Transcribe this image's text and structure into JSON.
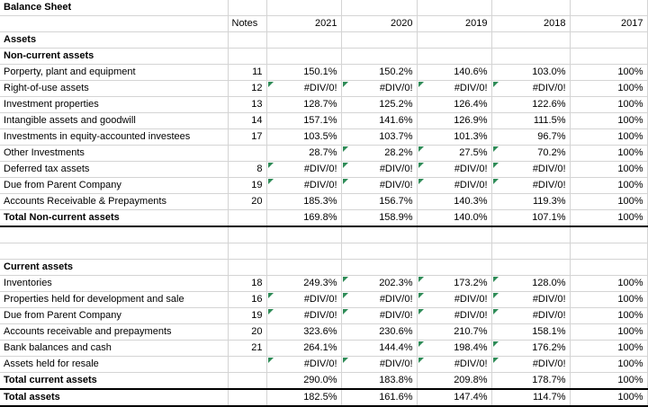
{
  "title": "Balance Sheet",
  "columns": [
    "Notes",
    "2021",
    "2020",
    "2019",
    "2018",
    "2017"
  ],
  "sections": [
    {
      "heading": "Assets",
      "subheading": "Non-current assets",
      "rows": [
        {
          "label": "Porperty, plant and equipment",
          "note": "11",
          "values": [
            "150.1%",
            "150.2%",
            "140.6%",
            "103.0%",
            "100%"
          ]
        },
        {
          "label": "Right-of-use assets",
          "note": "12",
          "values": [
            "#DIV/0!",
            "#DIV/0!",
            "#DIV/0!",
            "#DIV/0!",
            "100%"
          ],
          "flags": [
            true,
            true,
            true,
            true,
            false
          ]
        },
        {
          "label": "Investment properties",
          "note": "13",
          "values": [
            "128.7%",
            "125.2%",
            "126.4%",
            "122.6%",
            "100%"
          ]
        },
        {
          "label": "Intangible assets and goodwill",
          "note": "14",
          "values": [
            "157.1%",
            "141.6%",
            "126.9%",
            "111.5%",
            "100%"
          ]
        },
        {
          "label": "Investments in equity-accounted investees",
          "note": "17",
          "values": [
            "103.5%",
            "103.7%",
            "101.3%",
            "96.7%",
            "100%"
          ]
        },
        {
          "label": "Other Investments",
          "note": "",
          "values": [
            "28.7%",
            "28.2%",
            "27.5%",
            "70.2%",
            "100%"
          ],
          "flags": [
            false,
            true,
            true,
            true,
            false
          ]
        },
        {
          "label": "Deferred tax assets",
          "note": "8",
          "values": [
            "#DIV/0!",
            "#DIV/0!",
            "#DIV/0!",
            "#DIV/0!",
            "100%"
          ],
          "flags": [
            true,
            true,
            true,
            true,
            false
          ]
        },
        {
          "label": "Due from  Parent Company",
          "note": "19",
          "values": [
            "#DIV/0!",
            "#DIV/0!",
            "#DIV/0!",
            "#DIV/0!",
            "100%"
          ],
          "flags": [
            true,
            true,
            true,
            true,
            false
          ]
        },
        {
          "label": "Accounts Receivable & Prepayments",
          "note": "20",
          "values": [
            "185.3%",
            "156.7%",
            "140.3%",
            "119.3%",
            "100%"
          ]
        }
      ],
      "total": {
        "label": "Total Non-current assets",
        "values": [
          "169.8%",
          "158.9%",
          "140.0%",
          "107.1%",
          "100%"
        ]
      }
    },
    {
      "heading": "",
      "subheading": "Current assets",
      "rows": [
        {
          "label": "Inventories",
          "note": "18",
          "values": [
            "249.3%",
            "202.3%",
            "173.2%",
            "128.0%",
            "100%"
          ],
          "flags": [
            false,
            true,
            true,
            true,
            false
          ]
        },
        {
          "label": "Properties held for development and sale",
          "note": "16",
          "values": [
            "#DIV/0!",
            "#DIV/0!",
            "#DIV/0!",
            "#DIV/0!",
            "100%"
          ],
          "flags": [
            true,
            true,
            true,
            true,
            false
          ]
        },
        {
          "label": "Due from Parent Company",
          "note": "19",
          "values": [
            "#DIV/0!",
            "#DIV/0!",
            "#DIV/0!",
            "#DIV/0!",
            "100%"
          ],
          "flags": [
            true,
            true,
            true,
            true,
            false
          ]
        },
        {
          "label": "Accounts receivable and prepayments",
          "note": "20",
          "values": [
            "323.6%",
            "230.6%",
            "210.7%",
            "158.1%",
            "100%"
          ]
        },
        {
          "label": "Bank balances and cash",
          "note": "21",
          "values": [
            "264.1%",
            "144.4%",
            "198.4%",
            "176.2%",
            "100%"
          ],
          "flags": [
            false,
            false,
            true,
            true,
            false
          ]
        },
        {
          "label": "Assets held for resale",
          "note": "",
          "values": [
            "#DIV/0!",
            "#DIV/0!",
            "#DIV/0!",
            "#DIV/0!",
            "100%"
          ],
          "flags": [
            true,
            true,
            true,
            true,
            false
          ]
        }
      ],
      "total": {
        "label": "Total current assets",
        "values": [
          "290.0%",
          "183.8%",
          "209.8%",
          "178.7%",
          "100%"
        ]
      }
    }
  ],
  "grand_total": {
    "label": "Total assets",
    "values": [
      "182.5%",
      "161.6%",
      "147.4%",
      "114.7%",
      "100%"
    ]
  },
  "colors": {
    "gridline": "#d4d4d4",
    "error_indicator": "#2e8b57"
  }
}
